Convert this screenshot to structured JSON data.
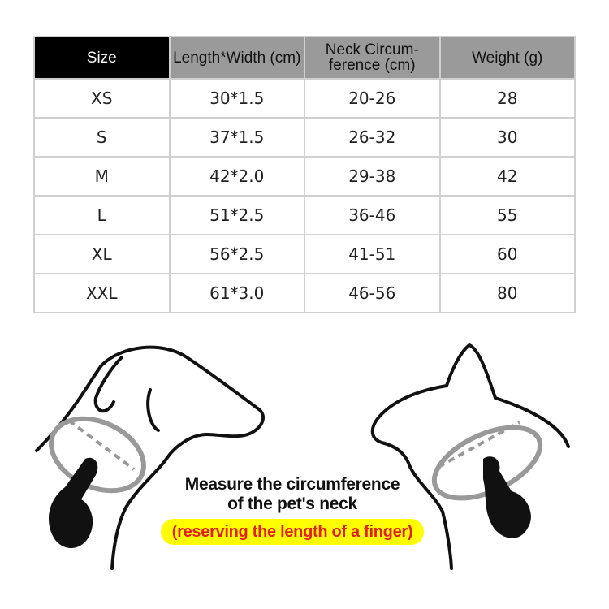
{
  "table": {
    "headers": [
      "Size",
      "Length*Width (cm)",
      "Neck Circum-ference (cm)",
      "Weight (g)"
    ],
    "rows": [
      [
        "XS",
        "30*1.5",
        "20-26",
        "28"
      ],
      [
        "S",
        "37*1.5",
        "26-32",
        "30"
      ],
      [
        "M",
        "42*2.0",
        "29-38",
        "42"
      ],
      [
        "L",
        "51*2.5",
        "36-46",
        "55"
      ],
      [
        "XL",
        "56*2.5",
        "41-51",
        "60"
      ],
      [
        "XXL",
        "61*3.0",
        "46-56",
        "80"
      ]
    ]
  },
  "instructions": {
    "line1": "Measure the circumference",
    "line2": "of the pet's neck",
    "note": "(reserving the length of a finger)"
  },
  "colors": {
    "header_first": "#000000",
    "header": "#9a9a9a",
    "highlight": "#ffff00",
    "note_text": "#e0201a"
  }
}
